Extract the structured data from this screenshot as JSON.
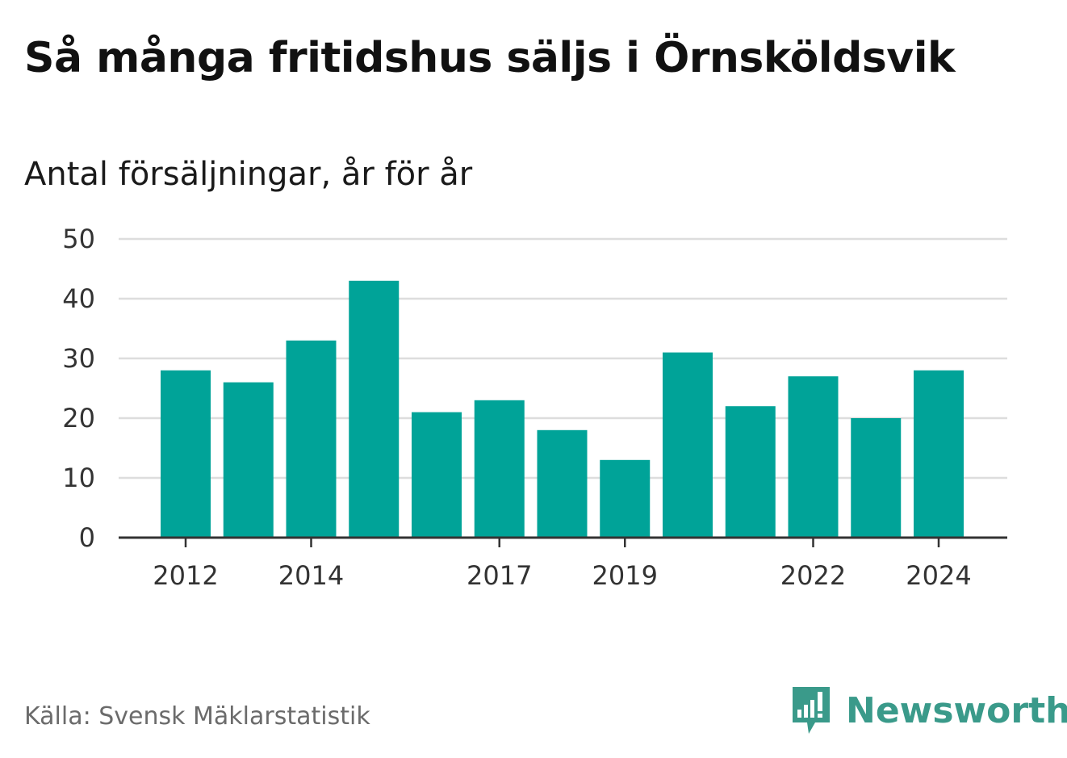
{
  "title": "Så många fritidshus säljs i Örnsköldsvik",
  "subtitle": "Antal försäljningar, år för år",
  "source": "Källa: Svensk Mäklarstatistik",
  "brand": {
    "name": "Newsworthy",
    "icon": "newsworthy-logo-icon",
    "color": "#3a9a8a"
  },
  "colors": {
    "bar": "#00a398",
    "grid": "#dddddd",
    "axis": "#333333"
  },
  "chart_data": {
    "type": "bar",
    "categories": [
      "2012",
      "2013",
      "2014",
      "2015",
      "2016",
      "2017",
      "2018",
      "2019",
      "2020",
      "2021",
      "2022",
      "2023",
      "2024"
    ],
    "values": [
      28,
      26,
      33,
      43,
      21,
      23,
      18,
      13,
      31,
      22,
      27,
      20,
      28
    ],
    "x_tick_labels": [
      "2012",
      "2014",
      "2017",
      "2019",
      "2022",
      "2024"
    ],
    "y_ticks": [
      0,
      10,
      20,
      30,
      40,
      50
    ],
    "ylim": [
      0,
      50
    ],
    "xlabel": "",
    "ylabel": "",
    "grid": true
  }
}
